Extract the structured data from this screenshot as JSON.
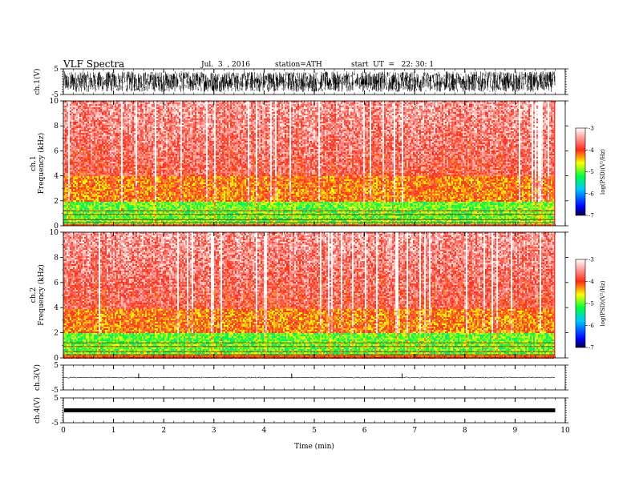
{
  "header": {
    "title": "VLF  Spectra",
    "date": "Jul.  3  , 2016",
    "station": "station=ATH",
    "start": "start  UT  =   22: 30: 1"
  },
  "chart_data": [
    {
      "type": "line",
      "panel": "ch1-waveform",
      "ylabel": "ch.1(V)",
      "ylim": [
        -5,
        5
      ],
      "y_ticks": [
        "5",
        "-5"
      ],
      "description_values": "dense broadband signal filling roughly -4 to 4 V",
      "amplitude_range": [
        -4,
        4
      ]
    },
    {
      "type": "heatmap",
      "panel": "ch1-spectrogram",
      "ylabel": "ch.1\nFrequency  (kHz)",
      "ylim": [
        0,
        10
      ],
      "y_ticks": [
        "0",
        "2",
        "4",
        "6",
        "8",
        "10"
      ],
      "colorbar": {
        "label": "log(PSD)(V²/Hz)",
        "range": [
          -7,
          -3
        ],
        "ticks": [
          "-3",
          "-4",
          "-5",
          "-6",
          "-7"
        ]
      },
      "bands": [
        {
          "freq_khz": [
            0,
            2
          ],
          "log_psd": -5
        },
        {
          "freq_khz": [
            2,
            4
          ],
          "log_psd": -4.2
        },
        {
          "freq_khz": [
            4,
            10
          ],
          "log_psd": -3.8
        }
      ]
    },
    {
      "type": "heatmap",
      "panel": "ch2-spectrogram",
      "ylabel": "ch.2\nFrequency  (kHz)",
      "ylim": [
        0,
        10
      ],
      "y_ticks": [
        "0",
        "2",
        "4",
        "6",
        "8",
        "10"
      ],
      "colorbar": {
        "label": "log(PSD)(V²/Hz)",
        "range": [
          -7,
          -3
        ],
        "ticks": [
          "-3",
          "-4",
          "-5",
          "-6",
          "-7"
        ]
      },
      "bands": [
        {
          "freq_khz": [
            0,
            2
          ],
          "log_psd": -5
        },
        {
          "freq_khz": [
            2,
            4
          ],
          "log_psd": -4.2
        },
        {
          "freq_khz": [
            4,
            10
          ],
          "log_psd": -3.8
        }
      ]
    },
    {
      "type": "line",
      "panel": "ch3-waveform",
      "ylabel": "ch.3(V)",
      "ylim": [
        -5,
        5
      ],
      "y_ticks": [
        "5",
        "-5"
      ],
      "baseline_v": 0,
      "spikes_min": [
        1.5,
        4.55,
        6.75
      ]
    },
    {
      "type": "line",
      "panel": "ch4-waveform",
      "ylabel": "ch.4(V)",
      "ylim": [
        -5,
        5
      ],
      "y_ticks": [
        "5",
        "-5"
      ],
      "band_v": [
        -0.3,
        0.3
      ]
    }
  ],
  "x_axis": {
    "xlabel": "Time  (min)",
    "xlim": [
      0,
      10
    ],
    "data_end_min": 9.8,
    "ticks": [
      "0",
      "1",
      "2",
      "3",
      "4",
      "5",
      "6",
      "7",
      "8",
      "9",
      "10"
    ]
  }
}
